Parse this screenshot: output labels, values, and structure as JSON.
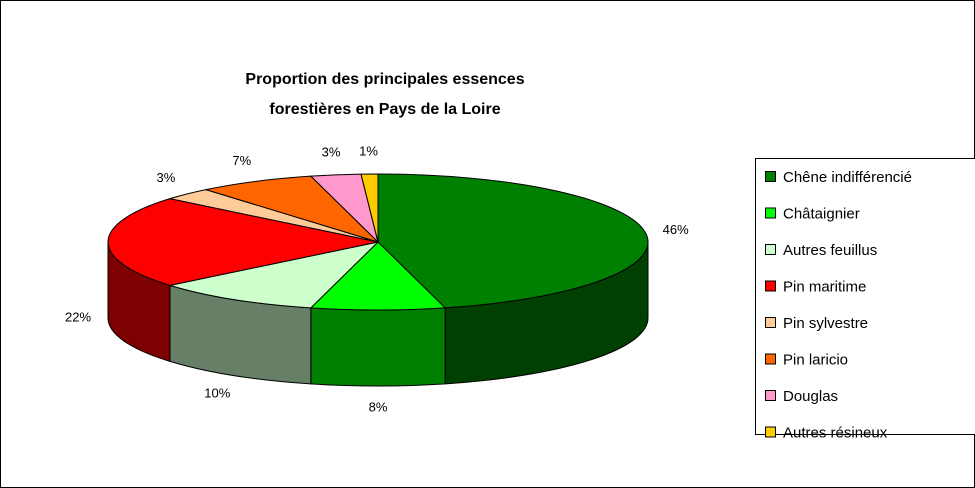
{
  "chart_data": {
    "type": "pie",
    "title": [
      "Proportion des principales essences",
      "forestières en Pays de la Loire"
    ],
    "categories": [
      "Chêne indifférencié",
      "Châtaignier",
      "Autres feuillus",
      "Pin maritime",
      "Pin sylvestre",
      "Pin laricio",
      "Douglas",
      "Autres résineux"
    ],
    "values": [
      46,
      8,
      10,
      22,
      3,
      7,
      3,
      1
    ],
    "value_labels": [
      "46%",
      "8%",
      "10%",
      "22%",
      "3%",
      "7%",
      "3%",
      "1%"
    ],
    "colors": [
      "#008000",
      "#00ff00",
      "#ccffcc",
      "#ff0000",
      "#ffcc99",
      "#ff6600",
      "#ff99cc",
      "#ffcc00"
    ],
    "legend": "right"
  }
}
